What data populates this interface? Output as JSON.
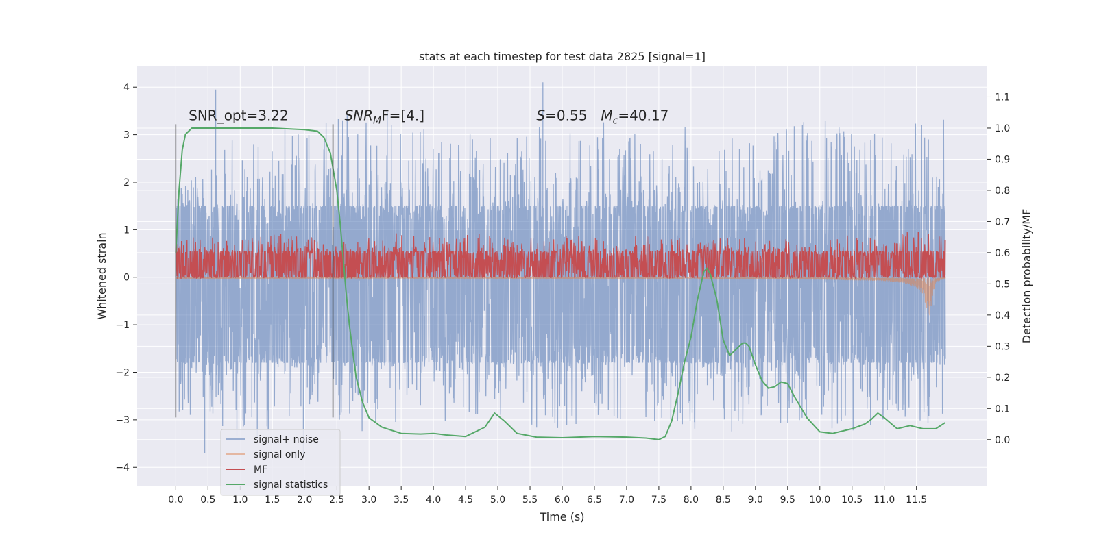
{
  "chart_data": {
    "type": "line",
    "title": "stats at each timestep for test data 2825 [signal=1]",
    "xlabel": "Time (s)",
    "ylabel": "Whitened strain",
    "y2label": "Detection probability/MF",
    "xlim": [
      -0.6,
      12.6
    ],
    "ylim": [
      -4.4,
      4.45
    ],
    "y2lim": [
      -0.15,
      1.2
    ],
    "xticks": [
      0.0,
      0.5,
      1.0,
      1.5,
      2.0,
      2.5,
      3.0,
      3.5,
      4.0,
      4.5,
      5.0,
      5.5,
      6.0,
      6.5,
      7.0,
      7.5,
      8.0,
      8.5,
      9.0,
      9.5,
      10.0,
      10.5,
      11.0,
      11.5
    ],
    "xtick_labels": [
      "0.0",
      "0.5",
      "1.0",
      "1.5",
      "2.0",
      "2.5",
      "3.0",
      "3.5",
      "4.0",
      "4.5",
      "5.0",
      "5.5",
      "6.0",
      "6.5",
      "7.0",
      "7.5",
      "8.0",
      "8.5",
      "9.0",
      "9.5",
      "10.0",
      "10.5",
      "11.0",
      "11.5"
    ],
    "yticks": [
      -4,
      -3,
      -2,
      -1,
      0,
      1,
      2,
      3,
      4
    ],
    "ytick_labels": [
      "−4",
      "−3",
      "−2",
      "−1",
      "0",
      "1",
      "2",
      "3",
      "4"
    ],
    "y2ticks": [
      0.0,
      0.1,
      0.2,
      0.3,
      0.4,
      0.5,
      0.6,
      0.7,
      0.8,
      0.9,
      1.0,
      1.1
    ],
    "y2tick_labels": [
      "0.0",
      "0.1",
      "0.2",
      "0.3",
      "0.4",
      "0.5",
      "0.6",
      "0.7",
      "0.8",
      "0.9",
      "1.0",
      "1.1"
    ],
    "grid": true,
    "legend_position": "lower-left",
    "annotations": [
      {
        "text": "SNR_opt=3.22",
        "x": 0.2,
        "y": 3.22
      },
      {
        "text": "SNR",
        "sub": "M",
        "tail": "F=[4.]",
        "x": 2.62,
        "y": 3.22
      },
      {
        "text": "S",
        "tail": "=0.55",
        "x": 5.6,
        "y": 3.22
      },
      {
        "text": "M",
        "sub": "c",
        "tail": "=40.17",
        "x": 6.6,
        "y": 3.22
      }
    ],
    "vlines": [
      {
        "x": 0.0,
        "y_from": -2.95,
        "y_to": 3.22
      },
      {
        "x": 2.44,
        "y_from": -2.95,
        "y_to": 3.22
      }
    ],
    "series": [
      {
        "name": "signal+ noise",
        "axis": "left",
        "color": "#4c72b0",
        "style": "dense-noise",
        "x_range": [
          0.0,
          11.95
        ],
        "band_upper": 1.5,
        "band_lower": -1.8,
        "spike_max": [
          1.9,
          2.3,
          3.3,
          3.2,
          3.1,
          3.5,
          3.6,
          3.3,
          3.1,
          3.0,
          2.9,
          3.3,
          3.0,
          3.5,
          2.9,
          3.2,
          3.3,
          2.8,
          3.1,
          3.4,
          3.2,
          3.1,
          3.3,
          3.4
        ],
        "spike_min": [
          -3.0,
          -2.9,
          -3.5,
          -3.3,
          -2.8,
          -3.1,
          -3.5,
          -2.9,
          -3.1,
          -3.0,
          -3.0,
          -3.4,
          -3.1,
          -3.0,
          -3.0,
          -3.1,
          -3.4,
          -3.2,
          -3.1,
          -3.0,
          -3.5,
          -3.0,
          -3.0,
          -3.2
        ],
        "peak_extremes": [
          {
            "x": 0.62,
            "y": 3.95
          },
          {
            "x": 5.7,
            "y": 4.1
          },
          {
            "x": 0.45,
            "y": -3.7
          },
          {
            "x": 1.98,
            "y": -3.8
          }
        ]
      },
      {
        "name": "signal only",
        "axis": "left",
        "color": "#dd8452",
        "style": "chirp",
        "x": [
          0.0,
          8.0,
          10.0,
          11.0,
          11.3,
          11.5,
          11.6,
          11.65,
          11.7,
          11.75,
          11.8,
          11.9,
          11.95
        ],
        "envelope": [
          0.02,
          0.03,
          0.05,
          0.08,
          0.12,
          0.22,
          0.35,
          0.6,
          0.85,
          0.4,
          0.1,
          0.05,
          0.03
        ]
      },
      {
        "name": "MF",
        "axis": "left",
        "color": "#c44e52",
        "style": "dense-noise",
        "x_range": [
          0.0,
          11.95
        ],
        "band_upper": 0.55,
        "band_lower": 0.0,
        "spike_max": [
          0.85,
          0.9,
          0.8,
          0.95,
          0.85,
          0.75,
          0.9,
          0.95,
          0.85,
          1.0,
          0.8,
          0.85,
          0.9,
          0.8,
          0.9,
          0.85,
          0.8,
          0.9,
          0.8,
          0.85,
          0.9,
          0.8,
          1.0,
          0.85
        ],
        "spike_min": [
          -0.05,
          -0.02,
          0.0,
          -0.03,
          0.0,
          -0.02,
          0.0,
          -0.02,
          0.0,
          0.0,
          -0.02,
          0.0,
          -0.02,
          0.0,
          0.0,
          -0.03,
          0.0,
          0.0,
          -0.02,
          0.0,
          -0.05,
          0.0,
          -0.02,
          0.0
        ]
      },
      {
        "name": "signal statistics",
        "axis": "right",
        "color": "#55a868",
        "style": "line",
        "x": [
          0.0,
          0.05,
          0.1,
          0.15,
          0.25,
          0.5,
          1.0,
          1.5,
          2.0,
          2.2,
          2.3,
          2.4,
          2.5,
          2.55,
          2.6,
          2.65,
          2.7,
          2.75,
          2.8,
          2.9,
          3.0,
          3.2,
          3.5,
          3.8,
          4.0,
          4.2,
          4.5,
          4.8,
          4.95,
          5.1,
          5.3,
          5.6,
          6.0,
          6.5,
          7.0,
          7.3,
          7.5,
          7.6,
          7.7,
          7.8,
          7.9,
          8.0,
          8.1,
          8.2,
          8.25,
          8.3,
          8.4,
          8.5,
          8.6,
          8.7,
          8.8,
          8.85,
          8.9,
          9.0,
          9.1,
          9.2,
          9.3,
          9.4,
          9.5,
          9.6,
          9.8,
          10.0,
          10.2,
          10.5,
          10.7,
          10.8,
          10.9,
          11.0,
          11.2,
          11.4,
          11.6,
          11.8,
          11.95
        ],
        "y": [
          0.6,
          0.8,
          0.93,
          0.98,
          1.0,
          1.0,
          1.0,
          1.0,
          0.995,
          0.99,
          0.97,
          0.92,
          0.8,
          0.7,
          0.58,
          0.46,
          0.36,
          0.28,
          0.2,
          0.12,
          0.07,
          0.04,
          0.02,
          0.018,
          0.02,
          0.015,
          0.01,
          0.04,
          0.085,
          0.06,
          0.02,
          0.008,
          0.006,
          0.01,
          0.008,
          0.005,
          0.0,
          0.01,
          0.06,
          0.15,
          0.25,
          0.33,
          0.45,
          0.54,
          0.55,
          0.53,
          0.45,
          0.32,
          0.27,
          0.29,
          0.31,
          0.31,
          0.3,
          0.24,
          0.19,
          0.165,
          0.17,
          0.185,
          0.18,
          0.14,
          0.07,
          0.025,
          0.02,
          0.035,
          0.05,
          0.065,
          0.085,
          0.07,
          0.035,
          0.045,
          0.035,
          0.035,
          0.055
        ]
      }
    ]
  }
}
